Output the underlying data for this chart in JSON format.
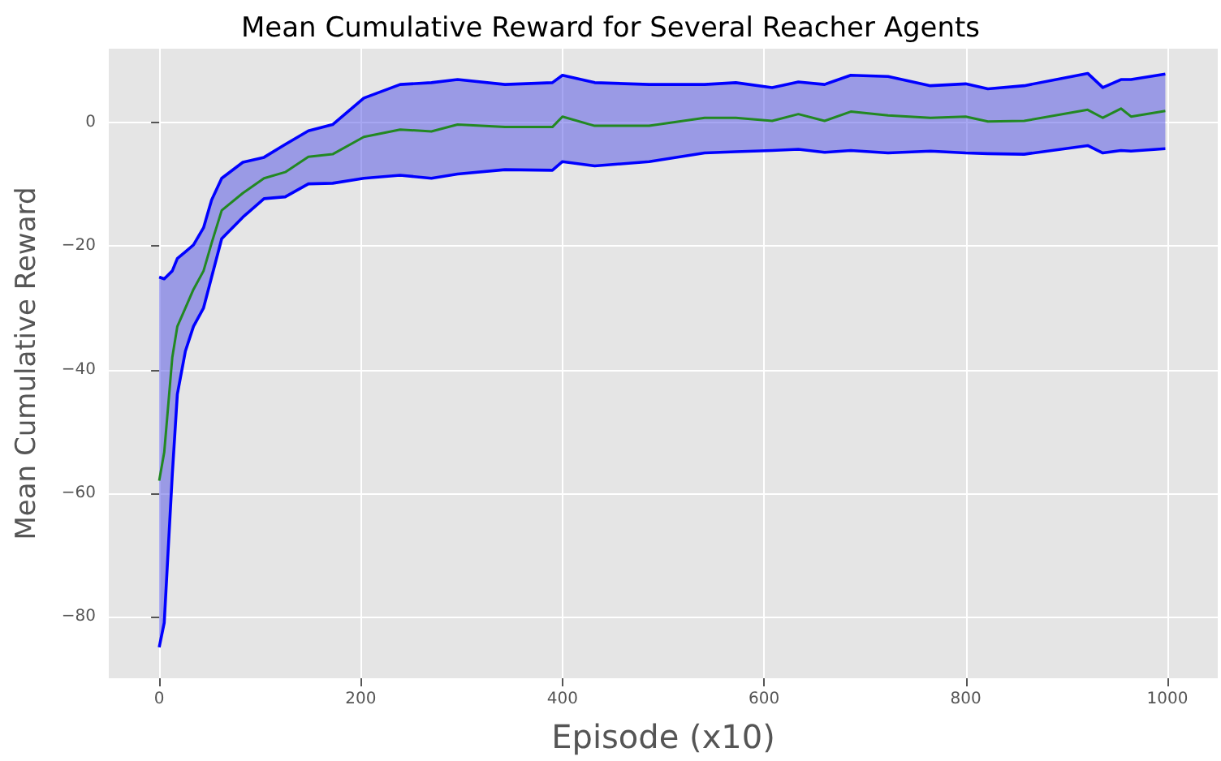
{
  "chart_data": {
    "type": "line",
    "title": "Mean Cumulative Reward for Several Reacher Agents",
    "xlabel": "Episode (x10)",
    "ylabel": "Mean Cumulative Reward",
    "x": [
      0,
      5,
      13,
      18,
      26,
      34,
      44,
      52,
      62,
      83,
      104,
      125,
      148,
      172,
      203,
      239,
      270,
      296,
      343,
      390,
      400,
      432,
      486,
      541,
      572,
      608,
      634,
      660,
      686,
      723,
      765,
      800,
      822,
      858,
      921,
      936,
      954,
      964,
      998
    ],
    "series": [
      {
        "color": "#228822",
        "values": [
          -58,
          -53.4,
          -38,
          -33,
          -30,
          -27,
          -24,
          -19.5,
          -14.2,
          -11.4,
          -9,
          -8,
          -5.5,
          -5.1,
          -2.3,
          -1.1,
          -1.4,
          -0.3,
          -0.7,
          -0.7,
          1,
          -0.5,
          -0.5,
          0.8,
          0.8,
          0.3,
          1.4,
          0.3,
          1.8,
          1.2,
          0.8,
          1,
          0.2,
          0.3,
          2.1,
          0.8,
          2.3,
          1,
          1.9
        ],
        "upper": [
          -25,
          -25.3,
          -24,
          -22,
          -20.9,
          -19.8,
          -17,
          -12.5,
          -9,
          -6.4,
          -5.6,
          -3.5,
          -1.3,
          -0.3,
          4,
          6.2,
          6.5,
          7,
          6.2,
          6.5,
          7.7,
          6.5,
          6.2,
          6.2,
          6.5,
          5.7,
          6.6,
          6.2,
          7.7,
          7.5,
          6,
          6.3,
          5.5,
          6,
          8,
          5.7,
          7,
          7,
          7.9
        ],
        "lower": [
          -85,
          -81,
          -57,
          -44,
          -37,
          -33,
          -30,
          -25,
          -18.8,
          -15.3,
          -12.3,
          -12,
          -9.9,
          -9.8,
          -9,
          -8.5,
          -9,
          -8.3,
          -7.6,
          -7.7,
          -6.3,
          -7,
          -6.3,
          -4.9,
          -4.7,
          -4.5,
          -4.3,
          -4.8,
          -4.5,
          -4.9,
          -4.6,
          -4.9,
          -5,
          -5.1,
          -3.7,
          -4.9,
          -4.5,
          -4.6,
          -4.2
        ]
      },
      {
        "color": "#0000ff",
        "values": [
          -25,
          -25.3,
          -24,
          -22,
          -20.9,
          -19.8,
          -17,
          -12.5,
          -9,
          -6.4,
          -5.6,
          -3.5,
          -1.3,
          -0.3,
          4,
          6.2,
          6.5,
          7,
          6.2,
          6.5,
          7.7,
          6.5,
          6.2,
          6.2,
          6.5,
          5.7,
          6.6,
          6.2,
          7.7,
          7.5,
          6,
          6.3,
          5.5,
          6,
          8,
          5.7,
          7,
          7,
          7.9
        ]
      },
      {
        "color": "#0000ff",
        "values": [
          -85,
          -81,
          -57,
          -44,
          -37,
          -33,
          -30,
          -25,
          -18.8,
          -15.3,
          -12.3,
          -12,
          -9.9,
          -9.8,
          -9,
          -8.5,
          -9,
          -8.3,
          -7.6,
          -7.7,
          -6.3,
          -7,
          -6.3,
          -4.9,
          -4.7,
          -4.5,
          -4.3,
          -4.8,
          -4.5,
          -4.9,
          -4.6,
          -4.9,
          -5,
          -5.1,
          -3.7,
          -4.9,
          -4.5,
          -4.6,
          -4.2
        ]
      }
    ],
    "xlim": [
      -50,
      1050
    ],
    "xticks": [
      0,
      200,
      400,
      600,
      800,
      1000
    ],
    "ylim": [
      -90,
      12
    ],
    "yticks": [
      -80,
      -60,
      -40,
      -20,
      0
    ],
    "grid": true,
    "marker": "none",
    "line_style": "solid"
  }
}
